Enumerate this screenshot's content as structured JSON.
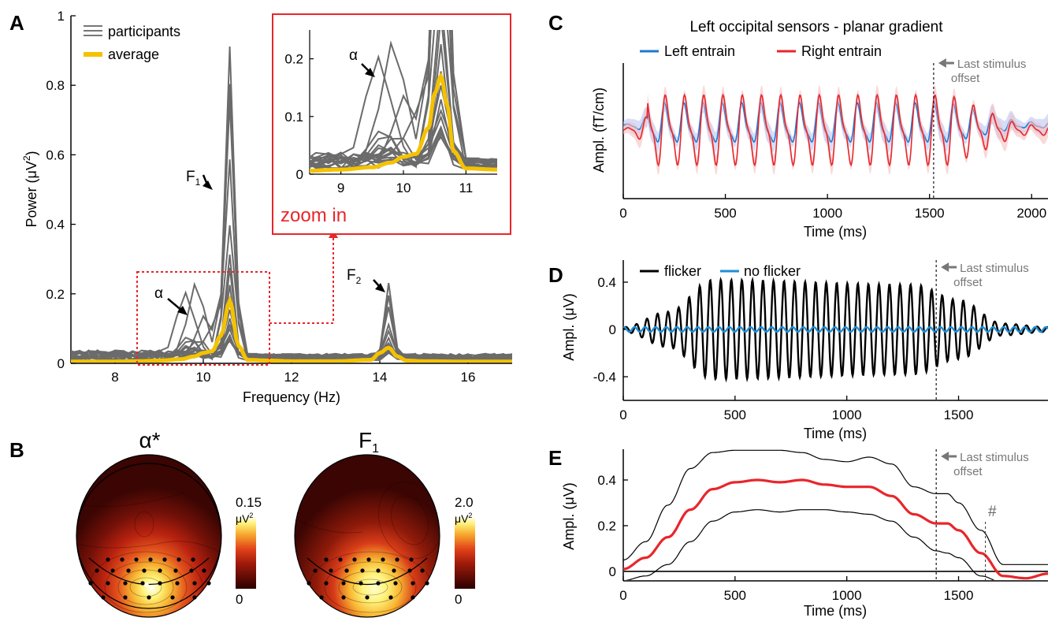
{
  "panels": {
    "A": {
      "letter": "A",
      "xlabel": "Frequency (Hz)",
      "ylabel_main": "Power (μV",
      "ylabel_sup": "2",
      "ylabel_end": ")",
      "xticks": [
        "8",
        "10",
        "12",
        "14",
        "16"
      ],
      "yticks": [
        "0",
        "0.2",
        "0.4",
        "0.6",
        "0.8",
        "1"
      ],
      "legend": [
        "participants",
        "average"
      ],
      "annotations": {
        "alpha": "α",
        "f1": "F",
        "f1_sub": "1",
        "f2": "F",
        "f2_sub": "2"
      },
      "zoom_label": "zoom in",
      "inset": {
        "xticks": [
          "9",
          "10",
          "11"
        ],
        "yticks": [
          "0",
          "0.1",
          "0.2"
        ],
        "alpha_label": "α"
      }
    },
    "B": {
      "letter": "B",
      "maps": [
        {
          "title": "α*",
          "colorbar_max": "0.15",
          "colorbar_unit": "μV",
          "colorbar_unit_sup": "2",
          "colorbar_min": "0"
        },
        {
          "title": "F",
          "title_sub": "1",
          "colorbar_max": "2.0",
          "colorbar_unit": "μV",
          "colorbar_unit_sup": "2",
          "colorbar_min": "0"
        }
      ]
    },
    "C": {
      "letter": "C",
      "title": "Left occipital sensors - planar gradient",
      "legend": [
        "Left entrain",
        "Right entrain"
      ],
      "xlabel": "Time (ms)",
      "ylabel": "Ampl. (fT/cm)",
      "xticks": [
        "0",
        "500",
        "1000",
        "1500",
        "2000"
      ],
      "marker_note": [
        "Last stimulus",
        "offset"
      ]
    },
    "D": {
      "letter": "D",
      "legend": [
        "flicker",
        "no flicker"
      ],
      "xlabel": "Time (ms)",
      "ylabel": "Ampl. (μV)",
      "xticks": [
        "0",
        "500",
        "1000",
        "1500"
      ],
      "yticks": [
        "-0.4",
        "0",
        "0.4"
      ],
      "marker_note": [
        "Last stimulus",
        "offset"
      ]
    },
    "E": {
      "letter": "E",
      "xlabel": "Time (ms)",
      "ylabel": "Ampl. (μV)",
      "xticks": [
        "0",
        "500",
        "1000",
        "1500"
      ],
      "yticks": [
        "0",
        "0.2",
        "0.4"
      ],
      "marker_note": [
        "Last stimulus",
        "offset"
      ],
      "hash": "#"
    }
  },
  "colors": {
    "participants": "#6b6b6b",
    "average": "#f5c200",
    "zoom": "#e8262b",
    "left_entrain": "#1f78d1",
    "right_entrain": "#e8262b",
    "flicker": "#000000",
    "no_flicker": "#1f8fd6",
    "mean_line": "#e8262b"
  },
  "chart_data": [
    {
      "type": "line",
      "panel": "A",
      "xlabel": "Frequency (Hz)",
      "ylabel": "Power (μV2)",
      "xlim": [
        7,
        17
      ],
      "ylim": [
        0,
        1
      ],
      "series": [
        {
          "name": "average",
          "x": [
            7,
            8,
            8.5,
            9,
            9.5,
            9.8,
            10,
            10.2,
            10.4,
            10.6,
            10.8,
            11,
            11.5,
            12,
            13,
            13.8,
            14,
            14.2,
            14.4,
            14.6,
            15,
            16,
            17
          ],
          "y": [
            0.005,
            0.005,
            0.006,
            0.008,
            0.012,
            0.02,
            0.03,
            0.035,
            0.08,
            0.18,
            0.05,
            0.01,
            0.008,
            0.006,
            0.006,
            0.01,
            0.03,
            0.045,
            0.02,
            0.008,
            0.006,
            0.005,
            0.005
          ]
        },
        {
          "name": "participants",
          "peaks": {
            "f1_x": 10.6,
            "f1_max": 0.9,
            "f2_x": 14.2,
            "f2_max": 0.22,
            "alpha_x": 9.8,
            "alpha_max": 0.21
          }
        }
      ]
    },
    {
      "type": "line",
      "panel": "A-inset",
      "xlim": [
        8.5,
        11.5
      ],
      "ylim": [
        0,
        0.25
      ],
      "series": [
        {
          "name": "average",
          "x": [
            8.5,
            9,
            9.5,
            9.8,
            10,
            10.2,
            10.4,
            10.5,
            10.6,
            10.7,
            10.8,
            11,
            11.5
          ],
          "y": [
            0.006,
            0.008,
            0.012,
            0.02,
            0.03,
            0.035,
            0.08,
            0.14,
            0.17,
            0.12,
            0.04,
            0.01,
            0.008
          ]
        }
      ]
    },
    {
      "type": "line",
      "panel": "C",
      "xlabel": "Time (ms)",
      "ylabel": "Ampl. (fT/cm)",
      "xlim": [
        0,
        2080
      ],
      "marker_x": 1520,
      "series": [
        {
          "name": "Left entrain",
          "frequency_hz": 10.6,
          "relative_amplitude": 0.5
        },
        {
          "name": "Right entrain",
          "frequency_hz": 10.6,
          "relative_amplitude": 1.0
        }
      ]
    },
    {
      "type": "line",
      "panel": "D",
      "xlabel": "Time (ms)",
      "ylabel": "Ampl. (μV)",
      "xlim": [
        0,
        1900
      ],
      "ylim": [
        -0.6,
        0.6
      ],
      "marker_x": 1400,
      "series": [
        {
          "name": "flicker",
          "frequency_hz": 21.2,
          "envelope_t": [
            0,
            200,
            400,
            1300,
            1500,
            1700,
            1900
          ],
          "envelope_amp": [
            0.02,
            0.15,
            0.42,
            0.38,
            0.25,
            0.05,
            0.02
          ]
        },
        {
          "name": "no flicker",
          "frequency_hz": 21.2,
          "envelope_t": [
            0,
            1900
          ],
          "envelope_amp": [
            0.02,
            0.02
          ]
        }
      ]
    },
    {
      "type": "line",
      "panel": "E",
      "xlabel": "Time (ms)",
      "ylabel": "Ampl. (μV)",
      "xlim": [
        0,
        1900
      ],
      "ylim": [
        -0.05,
        0.55
      ],
      "marker_x": 1400,
      "hash_x": 1620,
      "series": [
        {
          "name": "mean",
          "x": [
            0,
            100,
            200,
            300,
            400,
            500,
            600,
            700,
            800,
            900,
            1000,
            1100,
            1200,
            1300,
            1400,
            1450,
            1500,
            1600,
            1700,
            1800,
            1900
          ],
          "y": [
            0.01,
            0.06,
            0.15,
            0.27,
            0.36,
            0.39,
            0.4,
            0.39,
            0.4,
            0.38,
            0.37,
            0.37,
            0.33,
            0.25,
            0.21,
            0.21,
            0.18,
            0.08,
            -0.02,
            -0.03,
            -0.01
          ]
        },
        {
          "name": "upper",
          "x": [
            0,
            100,
            200,
            300,
            400,
            500,
            600,
            700,
            800,
            900,
            1000,
            1100,
            1200,
            1300,
            1400,
            1450,
            1500,
            1600,
            1700,
            1800,
            1900
          ],
          "y": [
            0.05,
            0.13,
            0.29,
            0.45,
            0.52,
            0.53,
            0.53,
            0.53,
            0.52,
            0.49,
            0.48,
            0.5,
            0.47,
            0.37,
            0.34,
            0.34,
            0.3,
            0.18,
            0.03,
            0.03,
            0.03
          ]
        },
        {
          "name": "lower",
          "x": [
            0,
            100,
            200,
            300,
            400,
            500,
            600,
            700,
            800,
            900,
            1000,
            1100,
            1200,
            1300,
            1400,
            1450,
            1500,
            1600,
            1700,
            1800,
            1900
          ],
          "y": [
            -0.04,
            -0.02,
            0.03,
            0.13,
            0.22,
            0.26,
            0.27,
            0.26,
            0.27,
            0.27,
            0.26,
            0.25,
            0.22,
            0.15,
            0.09,
            0.08,
            0.06,
            -0.02,
            -0.05,
            -0.05,
            -0.05
          ]
        }
      ]
    }
  ]
}
